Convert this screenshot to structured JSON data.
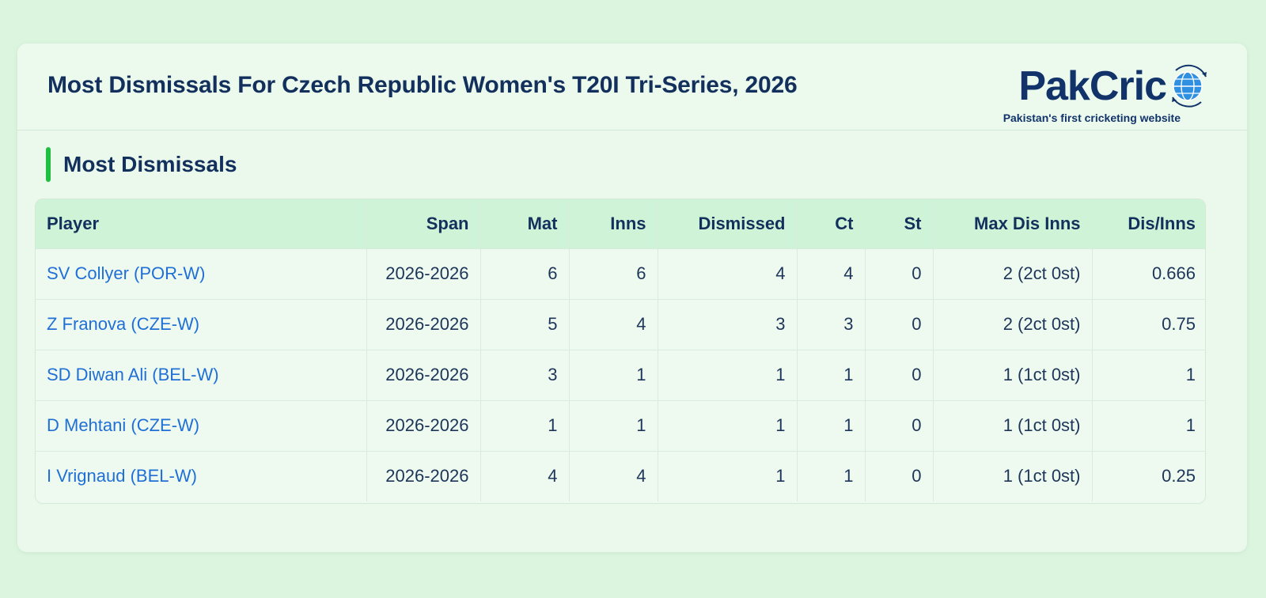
{
  "page": {
    "title": "Most Dismissals For Czech Republic Women's T20I Tri-Series, 2026",
    "section_title": "Most Dismissals"
  },
  "logo": {
    "wordmark": "PakCric",
    "tagline": "Pakistan's first cricketing website",
    "icon": "globe-icon"
  },
  "colors": {
    "accent_bar": "#1fbf3f",
    "link": "#1f6fd6",
    "header_row": "#cff3d7",
    "title": "#13305c"
  },
  "table": {
    "headers": [
      "Player",
      "Span",
      "Mat",
      "Inns",
      "Dismissed",
      "Ct",
      "St",
      "Max Dis Inns",
      "Dis/Inns"
    ],
    "rows": [
      [
        "SV Collyer (POR-W)",
        "2026-2026",
        "6",
        "6",
        "4",
        "4",
        "0",
        "2 (2ct 0st)",
        "0.666"
      ],
      [
        "Z Franova (CZE-W)",
        "2026-2026",
        "5",
        "4",
        "3",
        "3",
        "0",
        "2 (2ct 0st)",
        "0.75"
      ],
      [
        "SD Diwan Ali (BEL-W)",
        "2026-2026",
        "3",
        "1",
        "1",
        "1",
        "0",
        "1 (1ct 0st)",
        "1"
      ],
      [
        "D Mehtani (CZE-W)",
        "2026-2026",
        "1",
        "1",
        "1",
        "1",
        "0",
        "1 (1ct 0st)",
        "1"
      ],
      [
        "I Vrignaud (BEL-W)",
        "2026-2026",
        "4",
        "4",
        "1",
        "1",
        "0",
        "1 (1ct 0st)",
        "0.25"
      ]
    ]
  }
}
